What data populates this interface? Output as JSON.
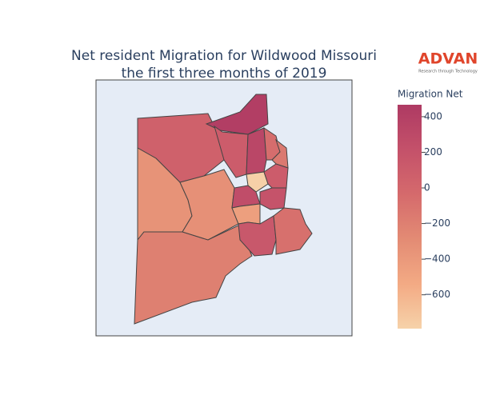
{
  "chart_data": {
    "type": "choropleth",
    "title": "Net resident Migration for Wildwood Missouri",
    "subtitle": "the first three months of 2019",
    "logo": {
      "name": "ADVAN",
      "tagline": "Research through Technology"
    },
    "colorbar_title": "Migration Net",
    "colorscale": [
      "#f6d2a9",
      "#f3aa84",
      "#e38b74",
      "#d56a6c",
      "#c4516a",
      "#ae3a63"
    ],
    "zlim": [
      -790,
      467
    ],
    "zticks": [
      {
        "value": -600,
        "label": "−600"
      },
      {
        "value": -400,
        "label": "−400"
      },
      {
        "value": -200,
        "label": "−200"
      },
      0,
      200,
      400
    ],
    "values": [
      50,
      -350,
      -200,
      -330,
      420,
      100,
      330,
      -60,
      -150,
      -780,
      100,
      260,
      200,
      -450,
      150,
      -80
    ]
  }
}
